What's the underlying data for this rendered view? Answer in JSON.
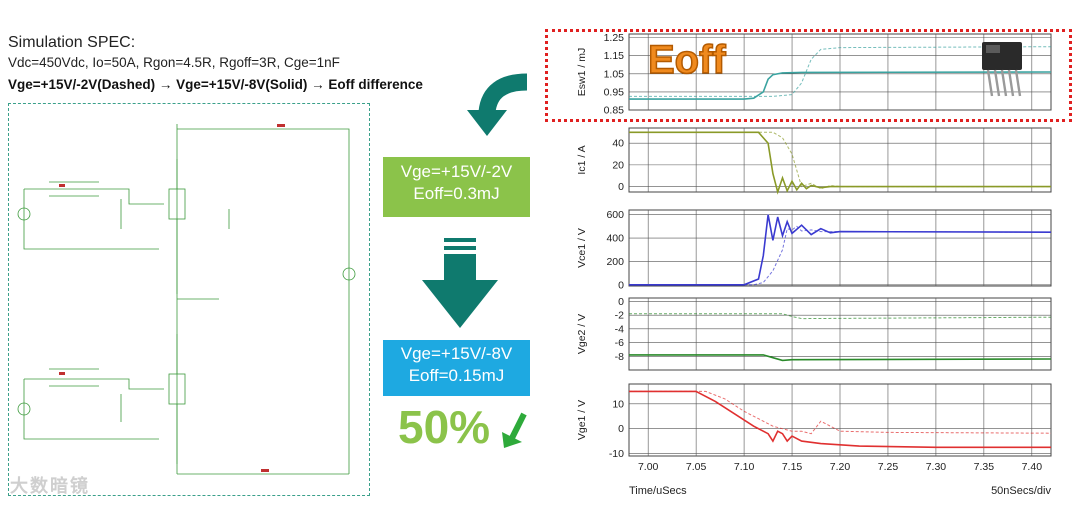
{
  "header": {
    "title": "Simulation SPEC:",
    "params": "Vdc=450Vdc, Io=50A, Rgon=4.5R, Rgoff=3R, Cge=1nF",
    "condition": "Vge=+15V/-2V(Dashed) → Vge=+15V/-8V(Solid)  → Eoff difference"
  },
  "callouts": {
    "case1_line1": "Vge=+15V/-2V",
    "case1_line2": "Eoff=0.3mJ",
    "case2_line1": "Vge=+15V/-8V",
    "case2_line2": "Eoff=0.15mJ",
    "reduction": "50%",
    "eoff_label": "Eoff"
  },
  "watermark": "大数暗镜",
  "colors": {
    "accent_green": "#8bc34a",
    "accent_blue": "#1ea9e1",
    "arrow_teal": "#0f7a6e",
    "highlight_red": "#e02020",
    "esw_trace": "#3aa3a0",
    "ic_trace": "#8a9a28",
    "vce_trace": "#3a3ad0",
    "vge2_trace": "#2a8a2a",
    "vge1_trace": "#e03030"
  },
  "chart_data": {
    "type": "line",
    "xlabel": "Time/uSecs",
    "x_scale_note": "50nSecs/div",
    "x_ticks": [
      "7.00",
      "7.05",
      "7.10",
      "7.15",
      "7.20",
      "7.25",
      "7.30",
      "7.35",
      "7.40"
    ],
    "xlim": [
      6.98,
      7.42
    ],
    "panels": [
      {
        "ylabel": "Esw1 / mJ",
        "ylim": [
          0.85,
          1.27
        ],
        "y_ticks": [
          "1.25",
          "1.15",
          "1.05",
          "0.95",
          "0.85"
        ],
        "series": [
          {
            "style": "solid",
            "x": [
              6.98,
              7.1,
              7.11,
              7.12,
              7.125,
              7.13,
              7.14,
              7.16,
              7.42
            ],
            "y": [
              0.91,
              0.91,
              0.915,
              0.95,
              1.02,
              1.045,
              1.055,
              1.058,
              1.06
            ]
          },
          {
            "style": "dashed",
            "x": [
              6.98,
              7.13,
              7.15,
              7.16,
              7.17,
              7.18,
              7.2,
              7.42
            ],
            "y": [
              0.925,
              0.925,
              0.935,
              1.0,
              1.13,
              1.185,
              1.195,
              1.2
            ]
          }
        ]
      },
      {
        "ylabel": "Ic1 / A",
        "ylim": [
          -5,
          54
        ],
        "y_ticks": [
          "40",
          "20",
          "0"
        ],
        "series": [
          {
            "style": "solid",
            "x": [
              6.98,
              7.115,
              7.125,
              7.13,
              7.135,
              7.14,
              7.145,
              7.15,
              7.155,
              7.16,
              7.165,
              7.17,
              7.18,
              7.19,
              7.42
            ],
            "y": [
              50,
              50,
              40,
              12,
              -5,
              8,
              -4,
              5,
              -3,
              3,
              -2,
              1,
              -1,
              0,
              0
            ]
          },
          {
            "style": "dashed",
            "x": [
              6.98,
              7.13,
              7.14,
              7.15,
              7.155,
              7.16,
              7.17,
              7.18,
              7.19,
              7.2,
              7.42
            ],
            "y": [
              50,
              50,
              45,
              30,
              15,
              0,
              3,
              -2,
              1,
              0,
              0
            ]
          }
        ]
      },
      {
        "ylabel": "Vce1 / V",
        "ylim": [
          -10,
          640
        ],
        "y_ticks": [
          "600",
          "400",
          "200",
          "0"
        ],
        "series": [
          {
            "style": "solid",
            "x": [
              6.98,
              7.1,
              7.115,
              7.12,
              7.125,
              7.13,
              7.135,
              7.14,
              7.145,
              7.15,
              7.16,
              7.17,
              7.18,
              7.19,
              7.2,
              7.42
            ],
            "y": [
              0,
              0,
              50,
              250,
              600,
              380,
              580,
              420,
              540,
              440,
              510,
              430,
              480,
              445,
              455,
              450
            ]
          },
          {
            "style": "dashed",
            "x": [
              6.98,
              7.11,
              7.12,
              7.13,
              7.14,
              7.145,
              7.15,
              7.155,
              7.16,
              7.17,
              7.18,
              7.42
            ],
            "y": [
              0,
              0,
              20,
              120,
              300,
              480,
              470,
              500,
              460,
              470,
              455,
              450
            ]
          }
        ]
      },
      {
        "ylabel": "Vge2 / V",
        "ylim": [
          -10,
          0.5
        ],
        "y_ticks": [
          "0",
          "-2",
          "-4",
          "-6",
          "-8"
        ],
        "series": [
          {
            "style": "solid",
            "x": [
              6.98,
              7.12,
              7.13,
              7.14,
              7.15,
              7.42
            ],
            "y": [
              -7.8,
              -7.8,
              -8.2,
              -8.6,
              -8.5,
              -8.4
            ]
          },
          {
            "style": "dashed",
            "x": [
              6.98,
              7.14,
              7.15,
              7.16,
              7.42
            ],
            "y": [
              -1.8,
              -1.8,
              -2.2,
              -2.5,
              -2.3
            ]
          }
        ]
      },
      {
        "ylabel": "Vge1 / V",
        "ylim": [
          -11,
          18
        ],
        "y_ticks": [
          "10",
          "0",
          "-10"
        ],
        "series": [
          {
            "style": "solid",
            "x": [
              6.98,
              7.05,
              7.07,
              7.09,
              7.11,
              7.12,
              7.125,
              7.13,
              7.135,
              7.14,
              7.145,
              7.15,
              7.16,
              7.18,
              7.22,
              7.3,
              7.42
            ],
            "y": [
              15,
              15,
              11,
              6,
              1,
              -1,
              -2,
              -5,
              -1,
              -2,
              -5,
              -3,
              -5,
              -6,
              -7,
              -7.5,
              -7.5
            ]
          },
          {
            "style": "dashed",
            "x": [
              6.98,
              7.06,
              7.08,
              7.1,
              7.12,
              7.13,
              7.14,
              7.15,
              7.16,
              7.17,
              7.18,
              7.2,
              7.25,
              7.42
            ],
            "y": [
              15,
              15,
              12,
              7,
              3,
              1,
              0,
              -1,
              -1,
              -2,
              3,
              -1,
              -1.5,
              -1.8
            ]
          }
        ]
      }
    ]
  }
}
